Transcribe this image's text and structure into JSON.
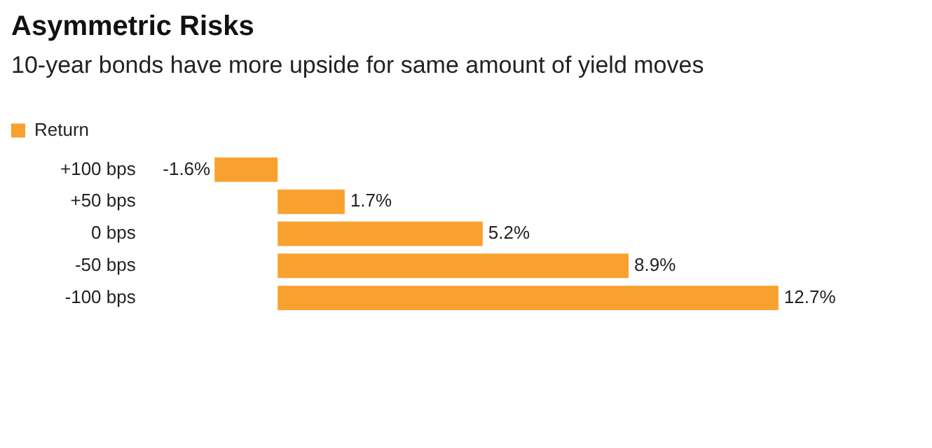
{
  "chart_data": {
    "type": "bar",
    "orientation": "horizontal",
    "title": "Asymmetric Risks",
    "subtitle": "10-year bonds have more upside for same amount of yield moves",
    "categories": [
      "+100 bps",
      "+50 bps",
      "0 bps",
      "-50 bps",
      "-100 bps"
    ],
    "series": [
      {
        "name": "Return",
        "color": "#f9a12e",
        "values": [
          -1.6,
          1.7,
          5.2,
          8.9,
          12.7
        ],
        "value_labels": [
          "-1.6%",
          "1.7%",
          "5.2%",
          "8.9%",
          "12.7%"
        ]
      }
    ],
    "legend": "top left",
    "grid": false,
    "tick_labels": "y"
  }
}
